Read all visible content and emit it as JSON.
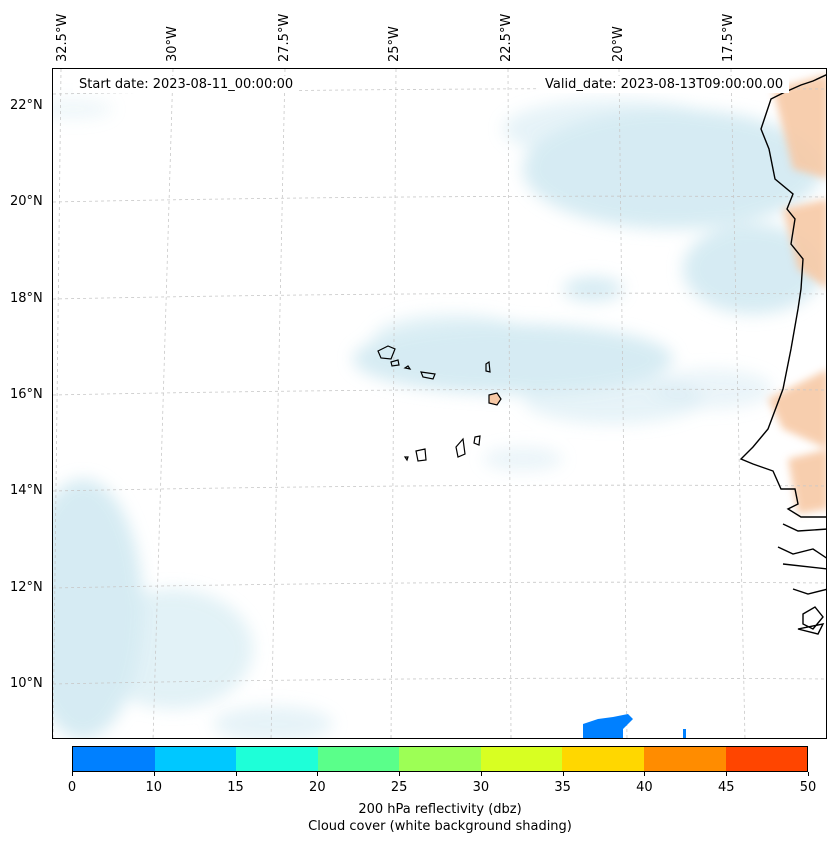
{
  "map": {
    "start_date_text": "Start date: 2023-08-11_00:00:00",
    "valid_date_text": "Valid_date: 2023-08-13T09:00:00.00",
    "lon_labels": [
      "32.5°W",
      "30°W",
      "27.5°W",
      "25°W",
      "22.5°W",
      "20°W",
      "17.5°W"
    ],
    "lat_labels": [
      "22°N",
      "20°N",
      "18°N",
      "16°N",
      "14°N",
      "12°N",
      "10°N"
    ],
    "colors": {
      "cloud_shading": "#cfe8f1",
      "warm_shading": "#f7c9a6",
      "coastline": "#000000",
      "reflectivity_blob": "#0080ff"
    }
  },
  "colorbar": {
    "ticks": [
      "0",
      "10",
      "15",
      "20",
      "25",
      "30",
      "35",
      "40",
      "45",
      "50"
    ],
    "colors": [
      "#0080ff",
      "#00c8ff",
      "#1effd8",
      "#5aff8a",
      "#9dff55",
      "#d8ff22",
      "#ffd700",
      "#ff8c00",
      "#ff4500"
    ],
    "label_line1": "200 hPa reflectivity (dbz)",
    "label_line2": "Cloud cover (white background shading)"
  }
}
